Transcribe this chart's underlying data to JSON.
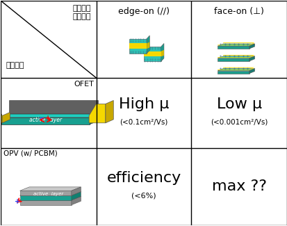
{
  "bg_color": "#ffffff",
  "grid_color": "#000000",
  "text_color": "#000000",
  "title_top_left_line1": "기질표면",
  "title_top_left_line2": "공액배향",
  "title_top_left_sub": "응용소자",
  "col1_header": "edge-on (//)",
  "col2_header": "face-on (⊥)",
  "row1_label": "OFET",
  "row2_label": "OPV (w/ PCBM)",
  "cell_mid_left_main": "High μ",
  "cell_mid_left_sub": "(<0.1cm²/Vs)",
  "cell_mid_right_main": "Low μ",
  "cell_mid_right_sub": "(<0.001cm²/Vs)",
  "cell_bot_left_main": "efficiency",
  "cell_bot_left_sub": "(<6%)",
  "cell_bot_right_main": "max ??",
  "col_splits": [
    0.335,
    0.665,
    1.0
  ],
  "row_splits": [
    0.345,
    0.655,
    1.0
  ],
  "figsize": [
    4.14,
    3.25
  ],
  "dpi": 100,
  "teal": "#2ec4b6",
  "teal_dark": "#1a9c8c",
  "yellow": "#f5d800",
  "yellow_dark": "#d4b800",
  "gray_light": "#c8c8c8",
  "gray_mid": "#a0a0a0",
  "gray_dark": "#808080",
  "dot_color": "#4a8fa8"
}
